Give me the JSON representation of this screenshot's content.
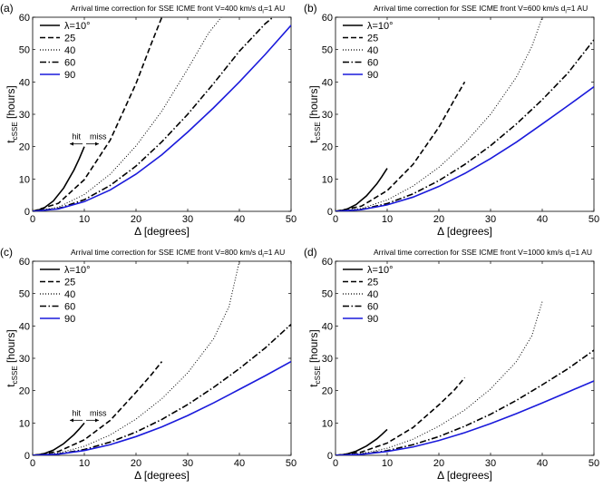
{
  "figure": {
    "ylabel_main": "t",
    "ylabel_sub": "cSSE",
    "ylabel_unit": " [hours]",
    "xlabel": "Δ [degrees]",
    "hit_label": "hit",
    "miss_label": "miss"
  },
  "chart_data": [
    {
      "type": "line",
      "panel_label": "(a)",
      "title": "Arrival time correction for SSE ICME front V=400 km/s  d",
      "title_sub": "i",
      "title_tail": "=1 AU",
      "xlabel": "Δ [degrees]",
      "ylabel": "t_cSSE [hours]",
      "xlim": [
        0,
        50
      ],
      "ylim": [
        0,
        60
      ],
      "xticks": [
        0,
        10,
        20,
        30,
        40,
        50
      ],
      "yticks": [
        0,
        10,
        20,
        30,
        40,
        50,
        60
      ],
      "grid": false,
      "legend_position": "top-left",
      "show_hit_miss": true,
      "series": [
        {
          "name": "λ=10°",
          "lambda": 10,
          "style": "solid",
          "color": "#000000",
          "x": [
            0,
            2,
            4,
            6,
            8,
            9,
            10
          ],
          "y": [
            0,
            0.8,
            3.2,
            7.2,
            12.8,
            16.2,
            20
          ]
        },
        {
          "name": "25",
          "lambda": 25,
          "style": "dashed",
          "color": "#000000",
          "x": [
            0,
            5,
            10,
            15,
            20,
            23,
            25
          ],
          "y": [
            0,
            2.5,
            9.8,
            22,
            39.5,
            52,
            60
          ]
        },
        {
          "name": "40",
          "lambda": 40,
          "style": "dotted",
          "color": "#000000",
          "x": [
            0,
            5,
            10,
            15,
            20,
            25,
            30,
            34,
            36.5
          ],
          "y": [
            0,
            1.3,
            5.2,
            11.5,
            20.2,
            31,
            44,
            55,
            60
          ]
        },
        {
          "name": "60",
          "lambda": 60,
          "style": "dashdot",
          "color": "#000000",
          "x": [
            0,
            5,
            10,
            15,
            20,
            25,
            30,
            35,
            40,
            45,
            46.5
          ],
          "y": [
            0,
            0.9,
            3.6,
            8,
            14,
            21.5,
            30,
            39.5,
            49.5,
            58,
            60
          ]
        },
        {
          "name": "90",
          "lambda": 90,
          "style": "solid",
          "color": "#1a1adb",
          "x": [
            0,
            5,
            10,
            15,
            20,
            25,
            30,
            35,
            40,
            45,
            50
          ],
          "y": [
            0,
            0.75,
            3,
            6.6,
            11.5,
            17.5,
            24.5,
            32,
            40,
            48.5,
            57.5
          ]
        }
      ]
    },
    {
      "type": "line",
      "panel_label": "(b)",
      "title": "Arrival time correction for SSE ICME front V=600 km/s  d",
      "title_sub": "i",
      "title_tail": "=1 AU",
      "xlabel": "Δ [degrees]",
      "ylabel": "t_cSSE [hours]",
      "xlim": [
        0,
        50
      ],
      "ylim": [
        0,
        60
      ],
      "xticks": [
        0,
        10,
        20,
        30,
        40,
        50
      ],
      "yticks": [
        0,
        10,
        20,
        30,
        40,
        50,
        60
      ],
      "grid": false,
      "legend_position": "top-left",
      "show_hit_miss": false,
      "series": [
        {
          "name": "λ=10°",
          "lambda": 10,
          "style": "solid",
          "color": "#000000",
          "x": [
            0,
            2,
            4,
            6,
            8,
            9,
            10
          ],
          "y": [
            0,
            0.5,
            2.1,
            4.8,
            8.5,
            10.8,
            13.3
          ]
        },
        {
          "name": "25",
          "lambda": 25,
          "style": "dashed",
          "color": "#000000",
          "x": [
            0,
            5,
            10,
            15,
            20,
            23,
            25
          ],
          "y": [
            0,
            1.6,
            6.4,
            14.5,
            26,
            34.5,
            40
          ]
        },
        {
          "name": "40",
          "lambda": 40,
          "style": "dotted",
          "color": "#000000",
          "x": [
            0,
            5,
            10,
            15,
            20,
            25,
            30,
            35,
            38,
            40
          ],
          "y": [
            0,
            0.9,
            3.5,
            7.8,
            13.6,
            21,
            30,
            41.5,
            51,
            60
          ]
        },
        {
          "name": "60",
          "lambda": 60,
          "style": "dashdot",
          "color": "#000000",
          "x": [
            0,
            5,
            10,
            15,
            20,
            25,
            30,
            35,
            40,
            45,
            50
          ],
          "y": [
            0,
            0.6,
            2.4,
            5.4,
            9.5,
            14.5,
            20.3,
            27,
            34.5,
            42.8,
            53
          ]
        },
        {
          "name": "90",
          "lambda": 90,
          "style": "solid",
          "color": "#1a1adb",
          "x": [
            0,
            5,
            10,
            15,
            20,
            25,
            30,
            35,
            40,
            45,
            50
          ],
          "y": [
            0,
            0.5,
            2,
            4.4,
            7.7,
            11.7,
            16.3,
            21.4,
            27,
            32.7,
            38.5
          ]
        }
      ]
    },
    {
      "type": "line",
      "panel_label": "(c)",
      "title": "Arrival time correction for SSE ICME front V=800 km/s  d",
      "title_sub": "i",
      "title_tail": "=1 AU",
      "xlabel": "Δ [degrees]",
      "ylabel": "t_cSSE [hours]",
      "xlim": [
        0,
        50
      ],
      "ylim": [
        0,
        60
      ],
      "xticks": [
        0,
        10,
        20,
        30,
        40,
        50
      ],
      "yticks": [
        0,
        10,
        20,
        30,
        40,
        50,
        60
      ],
      "grid": false,
      "legend_position": "top-left",
      "show_hit_miss": true,
      "series": [
        {
          "name": "λ=10°",
          "lambda": 10,
          "style": "solid",
          "color": "#000000",
          "x": [
            0,
            2,
            4,
            6,
            8,
            9,
            10
          ],
          "y": [
            0,
            0.4,
            1.6,
            3.6,
            6.4,
            8.1,
            10
          ]
        },
        {
          "name": "25",
          "lambda": 25,
          "style": "dashed",
          "color": "#000000",
          "x": [
            0,
            5,
            10,
            15,
            20,
            23,
            25
          ],
          "y": [
            0,
            1.2,
            4.8,
            10.8,
            19.5,
            25,
            29
          ]
        },
        {
          "name": "40",
          "lambda": 40,
          "style": "dotted",
          "color": "#000000",
          "x": [
            0,
            5,
            10,
            15,
            20,
            25,
            30,
            35,
            38,
            40
          ],
          "y": [
            0,
            0.7,
            2.8,
            6.3,
            11.2,
            17.5,
            25.5,
            36,
            46,
            60
          ]
        },
        {
          "name": "60",
          "lambda": 60,
          "style": "dashdot",
          "color": "#000000",
          "x": [
            0,
            5,
            10,
            15,
            20,
            25,
            30,
            35,
            40,
            45,
            50
          ],
          "y": [
            0,
            0.45,
            1.8,
            4.1,
            7.2,
            11.1,
            15.7,
            21,
            26.8,
            33.2,
            40.5
          ]
        },
        {
          "name": "90",
          "lambda": 90,
          "style": "solid",
          "color": "#1a1adb",
          "x": [
            0,
            5,
            10,
            15,
            20,
            25,
            30,
            35,
            40,
            45,
            50
          ],
          "y": [
            0,
            0.37,
            1.5,
            3.3,
            5.8,
            8.8,
            12.3,
            16.2,
            20.4,
            24.6,
            29
          ]
        }
      ]
    },
    {
      "type": "line",
      "panel_label": "(d)",
      "title": "Arrival time correction for SSE ICME front V=1000 km/s  d",
      "title_sub": "i",
      "title_tail": "=1 AU",
      "xlabel": "Δ [degrees]",
      "ylabel": "t_cSSE [hours]",
      "xlim": [
        0,
        50
      ],
      "ylim": [
        0,
        60
      ],
      "xticks": [
        0,
        10,
        20,
        30,
        40,
        50
      ],
      "yticks": [
        0,
        10,
        20,
        30,
        40,
        50,
        60
      ],
      "grid": false,
      "legend_position": "top-left",
      "show_hit_miss": false,
      "series": [
        {
          "name": "λ=10°",
          "lambda": 10,
          "style": "solid",
          "color": "#000000",
          "x": [
            0,
            2,
            4,
            6,
            8,
            9,
            10
          ],
          "y": [
            0,
            0.3,
            1.3,
            2.9,
            5.1,
            6.5,
            8
          ]
        },
        {
          "name": "25",
          "lambda": 25,
          "style": "dashed",
          "color": "#000000",
          "x": [
            0,
            5,
            10,
            15,
            20,
            23,
            25
          ],
          "y": [
            0,
            1,
            3.8,
            8.6,
            15.6,
            20.2,
            24
          ]
        },
        {
          "name": "40",
          "lambda": 40,
          "style": "dotted",
          "color": "#000000",
          "x": [
            0,
            5,
            10,
            15,
            20,
            25,
            30,
            35,
            38,
            40
          ],
          "y": [
            0,
            0.55,
            2.2,
            5,
            9,
            14,
            20.5,
            29,
            37,
            47.5
          ]
        },
        {
          "name": "60",
          "lambda": 60,
          "style": "dashdot",
          "color": "#000000",
          "x": [
            0,
            5,
            10,
            15,
            20,
            25,
            30,
            35,
            40,
            45,
            50
          ],
          "y": [
            0,
            0.36,
            1.45,
            3.3,
            5.8,
            9,
            12.7,
            17,
            21.8,
            26.8,
            32.5
          ]
        },
        {
          "name": "90",
          "lambda": 90,
          "style": "solid",
          "color": "#1a1adb",
          "x": [
            0,
            5,
            10,
            15,
            20,
            25,
            30,
            35,
            40,
            45,
            50
          ],
          "y": [
            0,
            0.3,
            1.2,
            2.6,
            4.6,
            7,
            9.8,
            12.9,
            16.2,
            19.6,
            23
          ]
        }
      ]
    }
  ]
}
